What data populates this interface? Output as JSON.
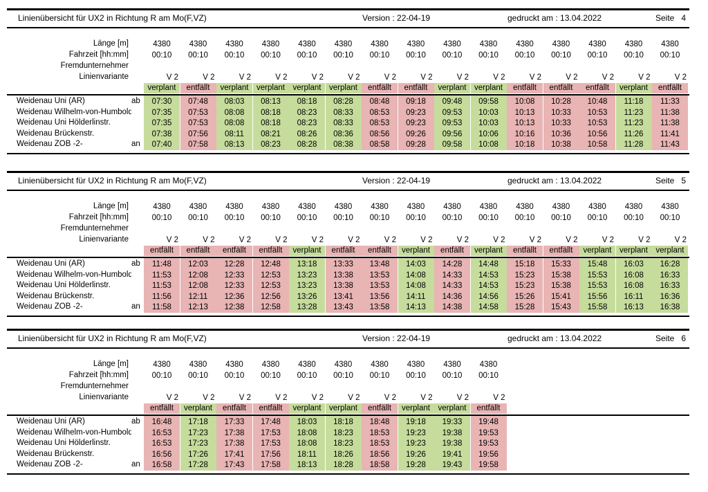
{
  "common": {
    "title": "Linienübersicht für UX2 in Richtung R am Mo(F,VZ)",
    "version": "Version : 22-04-19",
    "printed": "gedruckt am : 13.04.2022",
    "labels": {
      "laenge": "Länge [m]",
      "fahrzeit": "Fahrzeit [hh:mm]",
      "fremd": "Fremdunternehmer",
      "variante": "Linienvariante"
    },
    "stops": [
      {
        "name": "Weidenau Uni (AR)",
        "mark": "ab"
      },
      {
        "name": "Weidenau Wilhelm-von-Humboldt-Platz",
        "mark": ""
      },
      {
        "name": "Weidenau Uni Hölderlinstr.",
        "mark": ""
      },
      {
        "name": "Weidenau Brückenstr.",
        "mark": ""
      },
      {
        "name": "Weidenau ZOB -2-",
        "mark": "an"
      }
    ],
    "status_colors": {
      "verplant": "#c6dc9c",
      "entfällt": "#e8b4b4"
    }
  },
  "pages": [
    {
      "page": "Seite   4",
      "trips": [
        {
          "length": "4380",
          "time": "00:10",
          "variant": "V 2",
          "status": "verplant",
          "times": [
            "07:30",
            "07:35",
            "07:35",
            "07:38",
            "07:40"
          ]
        },
        {
          "length": "4380",
          "time": "00:10",
          "variant": "V 2",
          "status": "entfällt",
          "times": [
            "07:48",
            "07:53",
            "07:53",
            "07:56",
            "07:58"
          ]
        },
        {
          "length": "4380",
          "time": "00:10",
          "variant": "V 2",
          "status": "verplant",
          "times": [
            "08:03",
            "08:08",
            "08:08",
            "08:11",
            "08:13"
          ]
        },
        {
          "length": "4380",
          "time": "00:10",
          "variant": "V 2",
          "status": "verplant",
          "times": [
            "08:13",
            "08:18",
            "08:18",
            "08:21",
            "08:23"
          ]
        },
        {
          "length": "4380",
          "time": "00:10",
          "variant": "V 2",
          "status": "verplant",
          "times": [
            "08:18",
            "08:23",
            "08:23",
            "08:26",
            "08:28"
          ]
        },
        {
          "length": "4380",
          "time": "00:10",
          "variant": "V 2",
          "status": "verplant",
          "times": [
            "08:28",
            "08:33",
            "08:33",
            "08:36",
            "08:38"
          ]
        },
        {
          "length": "4380",
          "time": "00:10",
          "variant": "V 2",
          "status": "entfällt",
          "times": [
            "08:48",
            "08:53",
            "08:53",
            "08:56",
            "08:58"
          ]
        },
        {
          "length": "4380",
          "time": "00:10",
          "variant": "V 2",
          "status": "entfällt",
          "times": [
            "09:18",
            "09:23",
            "09:23",
            "09:26",
            "09:28"
          ]
        },
        {
          "length": "4380",
          "time": "00:10",
          "variant": "V 2",
          "status": "verplant",
          "times": [
            "09:48",
            "09:53",
            "09:53",
            "09:56",
            "09:58"
          ]
        },
        {
          "length": "4380",
          "time": "00:10",
          "variant": "V 2",
          "status": "verplant",
          "times": [
            "09:58",
            "10:03",
            "10:03",
            "10:06",
            "10:08"
          ]
        },
        {
          "length": "4380",
          "time": "00:10",
          "variant": "V 2",
          "status": "entfällt",
          "times": [
            "10:08",
            "10:13",
            "10:13",
            "10:16",
            "10:18"
          ]
        },
        {
          "length": "4380",
          "time": "00:10",
          "variant": "V 2",
          "status": "entfällt",
          "times": [
            "10:28",
            "10:33",
            "10:33",
            "10:36",
            "10:38"
          ]
        },
        {
          "length": "4380",
          "time": "00:10",
          "variant": "V 2",
          "status": "entfällt",
          "times": [
            "10:48",
            "10:53",
            "10:53",
            "10:56",
            "10:58"
          ]
        },
        {
          "length": "4380",
          "time": "00:10",
          "variant": "V 2",
          "status": "verplant",
          "times": [
            "11:18",
            "11:23",
            "11:23",
            "11:26",
            "11:28"
          ]
        },
        {
          "length": "4380",
          "time": "00:10",
          "variant": "V 2",
          "status": "entfällt",
          "times": [
            "11:33",
            "11:38",
            "11:38",
            "11:41",
            "11:43"
          ]
        }
      ]
    },
    {
      "page": "Seite   5",
      "trips": [
        {
          "length": "4380",
          "time": "00:10",
          "variant": "V 2",
          "status": "entfällt",
          "times": [
            "11:48",
            "11:53",
            "11:53",
            "11:56",
            "11:58"
          ]
        },
        {
          "length": "4380",
          "time": "00:10",
          "variant": "V 2",
          "status": "entfällt",
          "times": [
            "12:03",
            "12:08",
            "12:08",
            "12:11",
            "12:13"
          ]
        },
        {
          "length": "4380",
          "time": "00:10",
          "variant": "V 2",
          "status": "entfällt",
          "times": [
            "12:28",
            "12:33",
            "12:33",
            "12:36",
            "12:38"
          ]
        },
        {
          "length": "4380",
          "time": "00:10",
          "variant": "V 2",
          "status": "entfällt",
          "times": [
            "12:48",
            "12:53",
            "12:53",
            "12:56",
            "12:58"
          ]
        },
        {
          "length": "4380",
          "time": "00:10",
          "variant": "V 2",
          "status": "verplant",
          "times": [
            "13:18",
            "13:23",
            "13:23",
            "13:26",
            "13:28"
          ]
        },
        {
          "length": "4380",
          "time": "00:10",
          "variant": "V 2",
          "status": "entfällt",
          "times": [
            "13:33",
            "13:38",
            "13:38",
            "13:41",
            "13:43"
          ]
        },
        {
          "length": "4380",
          "time": "00:10",
          "variant": "V 2",
          "status": "entfällt",
          "times": [
            "13:48",
            "13:53",
            "13:53",
            "13:56",
            "13:58"
          ]
        },
        {
          "length": "4380",
          "time": "00:10",
          "variant": "V 2",
          "status": "verplant",
          "times": [
            "14:03",
            "14:08",
            "14:08",
            "14:11",
            "14:13"
          ]
        },
        {
          "length": "4380",
          "time": "00:10",
          "variant": "V 2",
          "status": "entfällt",
          "times": [
            "14:28",
            "14:33",
            "14:33",
            "14:36",
            "14:38"
          ]
        },
        {
          "length": "4380",
          "time": "00:10",
          "variant": "V 2",
          "status": "verplant",
          "times": [
            "14:48",
            "14:53",
            "14:53",
            "14:56",
            "14:58"
          ]
        },
        {
          "length": "4380",
          "time": "00:10",
          "variant": "V 2",
          "status": "entfällt",
          "times": [
            "15:18",
            "15:23",
            "15:23",
            "15:26",
            "15:28"
          ]
        },
        {
          "length": "4380",
          "time": "00:10",
          "variant": "V 2",
          "status": "entfällt",
          "times": [
            "15:33",
            "15:38",
            "15:38",
            "15:41",
            "15:43"
          ]
        },
        {
          "length": "4380",
          "time": "00:10",
          "variant": "V 2",
          "status": "verplant",
          "times": [
            "15:48",
            "15:53",
            "15:53",
            "15:56",
            "15:58"
          ]
        },
        {
          "length": "4380",
          "time": "00:10",
          "variant": "V 2",
          "status": "verplant",
          "times": [
            "16:03",
            "16:08",
            "16:08",
            "16:11",
            "16:13"
          ]
        },
        {
          "length": "4380",
          "time": "00:10",
          "variant": "V 2",
          "status": "verplant",
          "times": [
            "16:28",
            "16:33",
            "16:33",
            "16:36",
            "16:38"
          ]
        }
      ]
    },
    {
      "page": "Seite   6",
      "trips": [
        {
          "length": "4380",
          "time": "00:10",
          "variant": "V 2",
          "status": "entfällt",
          "times": [
            "16:48",
            "16:53",
            "16:53",
            "16:56",
            "16:58"
          ]
        },
        {
          "length": "4380",
          "time": "00:10",
          "variant": "V 2",
          "status": "verplant",
          "times": [
            "17:18",
            "17:23",
            "17:23",
            "17:26",
            "17:28"
          ]
        },
        {
          "length": "4380",
          "time": "00:10",
          "variant": "V 2",
          "status": "entfällt",
          "times": [
            "17:33",
            "17:38",
            "17:38",
            "17:41",
            "17:43"
          ]
        },
        {
          "length": "4380",
          "time": "00:10",
          "variant": "V 2",
          "status": "entfällt",
          "times": [
            "17:48",
            "17:53",
            "17:53",
            "17:56",
            "17:58"
          ]
        },
        {
          "length": "4380",
          "time": "00:10",
          "variant": "V 2",
          "status": "verplant",
          "times": [
            "18:03",
            "18:08",
            "18:08",
            "18:11",
            "18:13"
          ]
        },
        {
          "length": "4380",
          "time": "00:10",
          "variant": "V 2",
          "status": "verplant",
          "times": [
            "18:18",
            "18:23",
            "18:23",
            "18:26",
            "18:28"
          ]
        },
        {
          "length": "4380",
          "time": "00:10",
          "variant": "V 2",
          "status": "entfällt",
          "times": [
            "18:48",
            "18:53",
            "18:53",
            "18:56",
            "18:58"
          ]
        },
        {
          "length": "4380",
          "time": "00:10",
          "variant": "V 2",
          "status": "verplant",
          "times": [
            "19:18",
            "19:23",
            "19:23",
            "19:26",
            "19:28"
          ]
        },
        {
          "length": "4380",
          "time": "00:10",
          "variant": "V 2",
          "status": "verplant",
          "times": [
            "19:33",
            "19:38",
            "19:38",
            "19:41",
            "19:43"
          ]
        },
        {
          "length": "4380",
          "time": "00:10",
          "variant": "V 2",
          "status": "entfällt",
          "times": [
            "19:48",
            "19:53",
            "19:53",
            "19:56",
            "19:58"
          ]
        }
      ]
    }
  ]
}
